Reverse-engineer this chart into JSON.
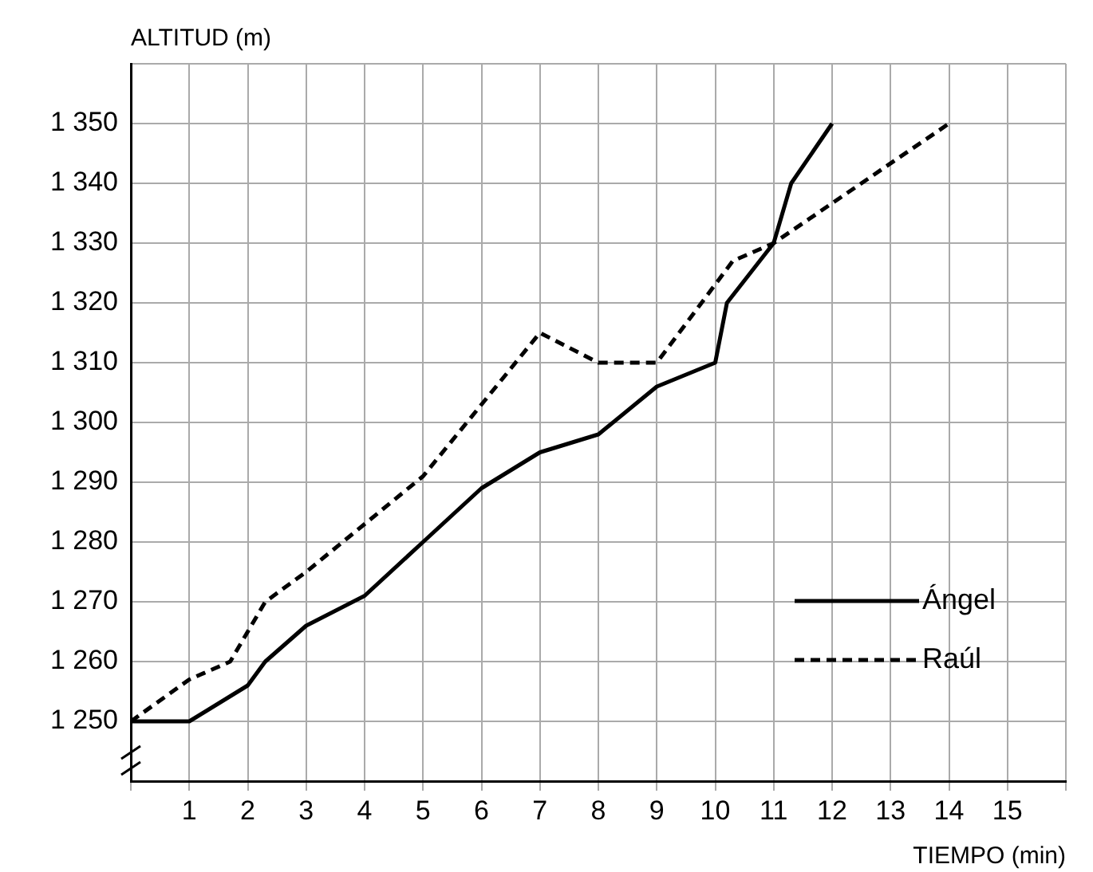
{
  "chart_data": {
    "type": "line",
    "xlabel": "TIEMPO (min)",
    "ylabel": "ALTITUD (m)",
    "xlim": [
      0,
      16
    ],
    "xticks": [
      {
        "value": 0,
        "label": null
      },
      1,
      2,
      3,
      4,
      5,
      6,
      7,
      8,
      9,
      10,
      11,
      12,
      13,
      14,
      15,
      {
        "value": 16,
        "label": null
      }
    ],
    "ylim": [
      1240,
      1360
    ],
    "yticks": [
      {
        "value": 1240,
        "label": null
      },
      {
        "value": 1250,
        "label": "1 250"
      },
      {
        "value": 1260,
        "label": "1 260"
      },
      {
        "value": 1270,
        "label": "1 270"
      },
      {
        "value": 1280,
        "label": "1 280"
      },
      {
        "value": 1290,
        "label": "1 290"
      },
      {
        "value": 1300,
        "label": "1 300"
      },
      {
        "value": 1310,
        "label": "1 310"
      },
      {
        "value": 1320,
        "label": "1 320"
      },
      {
        "value": 1330,
        "label": "1 330"
      },
      {
        "value": 1340,
        "label": "1 340"
      },
      {
        "value": 1350,
        "label": "1 350"
      },
      {
        "value": 1360,
        "label": null
      }
    ],
    "grid": true,
    "legend": "bottom right",
    "marker": "none",
    "series": [
      {
        "name": "Ángel",
        "color": "#000000",
        "line_style": "solid",
        "x": [
          0,
          1,
          2,
          2.3,
          3,
          4,
          5,
          6,
          7,
          8,
          9,
          10,
          10.2,
          11,
          11.3,
          12
        ],
        "values": [
          1250,
          1250,
          1256,
          1260,
          1266,
          1271,
          1280,
          1289,
          1295,
          1298,
          1306,
          1310,
          1320,
          1330,
          1340,
          1350
        ]
      },
      {
        "name": "Raúl",
        "color": "#000000",
        "line_style": "dashed",
        "x": [
          0,
          1,
          1.7,
          2.3,
          3,
          4,
          5,
          6,
          7,
          8,
          9,
          10.3,
          11,
          14
        ],
        "values": [
          1250,
          1257,
          1260,
          1270,
          1275,
          1283,
          1291,
          1303,
          1315,
          1310,
          1310,
          1327,
          1330,
          1350
        ]
      }
    ]
  }
}
